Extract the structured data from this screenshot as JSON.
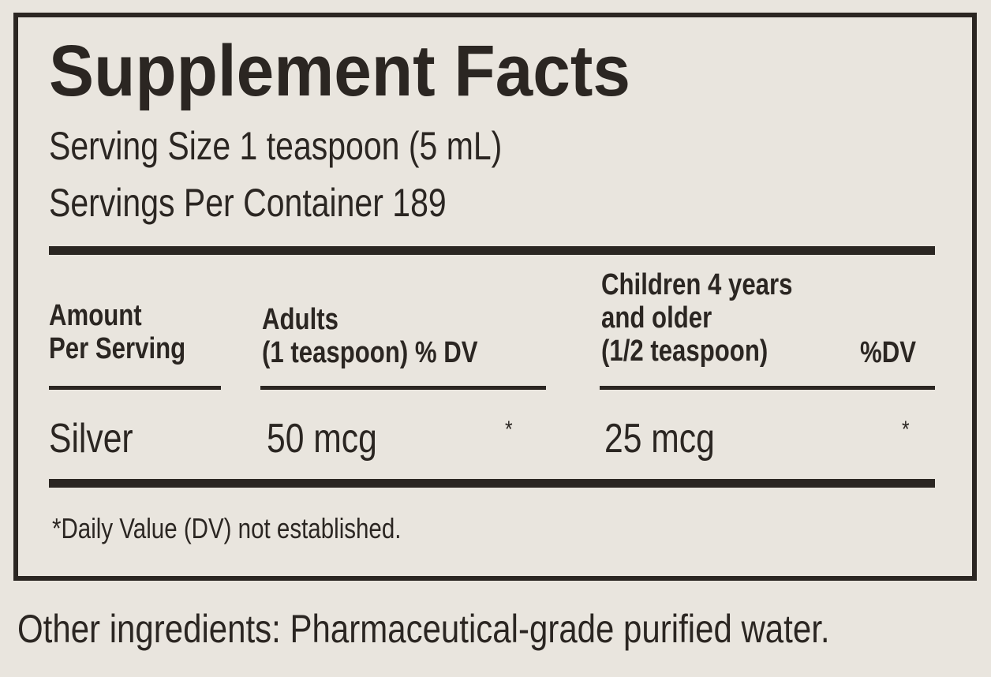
{
  "label": {
    "title": "Supplement Facts",
    "serving_size": "Serving Size 1 teaspoon (5 mL)",
    "servings_per_container": "Servings Per Container 189",
    "headers": {
      "amount_line1": "Amount",
      "amount_line2": "Per Serving",
      "adults_line1": "Adults",
      "adults_line2": "(1 teaspoon) % DV",
      "children_line1": "Children 4 years",
      "children_line2": "and older",
      "children_line3": "(1/2 teaspoon)",
      "children_dv": "%DV"
    },
    "rows": [
      {
        "name": "Silver",
        "adult_amount": "50 mcg",
        "adult_dv": "*",
        "child_amount": "25 mcg",
        "child_dv": "*"
      }
    ],
    "footnote": "*Daily Value (DV) not established.",
    "other_ingredients": "Other ingredients: Pharmaceutical-grade purified water."
  },
  "colors": {
    "background": "#e9e5de",
    "ink": "#2b2622"
  }
}
